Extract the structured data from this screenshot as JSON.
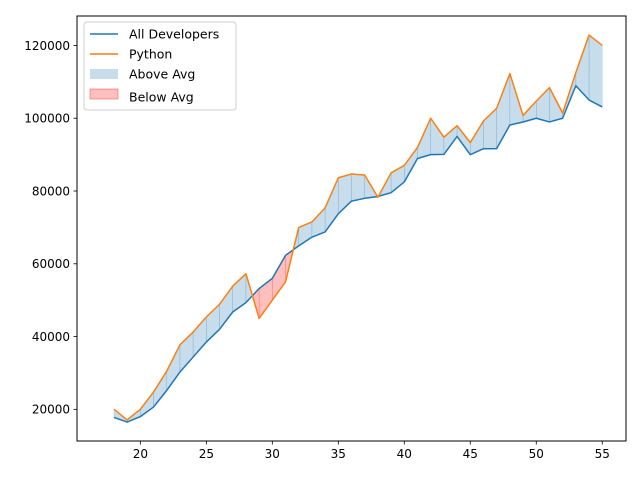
{
  "chart_data": {
    "type": "line",
    "title": "",
    "xlabel": "",
    "ylabel": "",
    "xlim": [
      15.2,
      56.8
    ],
    "ylim": [
      11300,
      128100
    ],
    "grid": false,
    "legend_placement": "top-left",
    "x": [
      18,
      19,
      20,
      21,
      22,
      23,
      24,
      25,
      26,
      27,
      28,
      29,
      30,
      31,
      32,
      33,
      34,
      35,
      36,
      37,
      38,
      39,
      40,
      41,
      42,
      43,
      44,
      45,
      46,
      47,
      48,
      49,
      50,
      51,
      52,
      53,
      54,
      55
    ],
    "series": [
      {
        "name": "All Developers",
        "color": "#1f77b4",
        "values": [
          17784,
          16500,
          18012,
          20628,
          25206,
          30252,
          34368,
          38496,
          42000,
          46752,
          49320,
          53200,
          56000,
          62316,
          64928,
          67317,
          68748,
          73752,
          77232,
          78000,
          78508,
          79536,
          82488,
          88935,
          90000,
          90056,
          95000,
          90000,
          91633,
          91660,
          98150,
          98964,
          100000,
          98988,
          100000,
          108923,
          105000,
          103117
        ]
      },
      {
        "name": "Python",
        "color": "#ff7f0e",
        "values": [
          20046,
          17100,
          20000,
          24744,
          30500,
          37732,
          41247,
          45372,
          48876,
          53850,
          57287,
          45000,
          50000,
          55000,
          70000,
          71496,
          75370,
          83640,
          84666,
          84392,
          78254,
          85000,
          87038,
          91991,
          100000,
          94796,
          97962,
          93302,
          99240,
          102736,
          112285,
          100771,
          104708,
          108423,
          101407,
          112542,
          122870,
          120000
        ]
      }
    ],
    "fills": [
      {
        "name": "Above Avg",
        "color": "#1f77b4",
        "opacity": 0.25
      },
      {
        "name": "Below Avg",
        "color": "#ff0000",
        "opacity": 0.25
      }
    ],
    "xticks": [
      20,
      25,
      30,
      35,
      40,
      45,
      50,
      55
    ],
    "yticks": [
      20000,
      40000,
      60000,
      80000,
      100000,
      120000
    ]
  },
  "legend": {
    "items": [
      "All Developers",
      "Python",
      "Above Avg",
      "Below Avg"
    ]
  }
}
